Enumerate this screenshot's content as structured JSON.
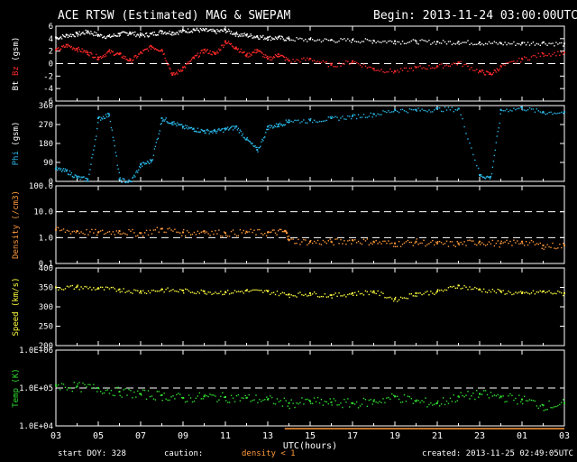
{
  "header": {
    "title": "ACE RTSW (Estimated) MAG & SWEPAM",
    "begin": "Begin: 2013-11-24 03:00:00UTC"
  },
  "footer": {
    "start_doy": "start DOY: 328",
    "caution": "caution:",
    "density_note": "density < 1",
    "created": "created: 2013-11-25 02:49:05UTC"
  },
  "colors": {
    "bt": "#ffffff",
    "bz": "#ff2a2a",
    "phi": "#2ab8e8",
    "density": "#ff9a3c",
    "speed": "#ffff40",
    "temp": "#30e030",
    "axis": "#ffffff",
    "background": "#000000"
  },
  "chart_data": [
    {
      "type": "scatter",
      "ylabel_parts": [
        "Bt",
        "Bz",
        "(gsm)"
      ],
      "yticks": [
        "6",
        "4",
        "2",
        "0",
        "-2",
        "-4",
        "-6"
      ],
      "ylim": [
        -6,
        6
      ],
      "x": {
        "label": "UTC(hours)",
        "ticks": [
          "03",
          "05",
          "07",
          "09",
          "11",
          "13",
          "15",
          "17",
          "19",
          "21",
          "23",
          "01",
          "03"
        ],
        "range_hours": [
          3,
          27
        ]
      },
      "reference_lines": [
        0
      ],
      "series": [
        {
          "name": "Bt",
          "color_key": "bt",
          "points": [
            [
              3,
              4.2
            ],
            [
              3.5,
              4.6
            ],
            [
              4,
              4.8
            ],
            [
              4.5,
              5.2
            ],
            [
              5,
              4.6
            ],
            [
              5.5,
              4.4
            ],
            [
              6,
              4.8
            ],
            [
              6.5,
              5.0
            ],
            [
              7,
              4.6
            ],
            [
              7.5,
              4.8
            ],
            [
              8,
              5.2
            ],
            [
              8.5,
              5.0
            ],
            [
              9,
              5.3
            ],
            [
              9.5,
              5.5
            ],
            [
              10,
              5.4
            ],
            [
              10.5,
              5.2
            ],
            [
              11,
              5.4
            ],
            [
              11.5,
              4.8
            ],
            [
              12,
              4.6
            ],
            [
              12.5,
              4.4
            ],
            [
              13,
              4.2
            ],
            [
              13.5,
              4.2
            ],
            [
              14,
              4.0
            ],
            [
              15,
              3.9
            ],
            [
              16,
              3.8
            ],
            [
              17,
              3.8
            ],
            [
              18,
              3.7
            ],
            [
              19,
              3.6
            ],
            [
              20,
              3.6
            ],
            [
              21,
              3.5
            ],
            [
              22,
              3.5
            ],
            [
              23,
              3.4
            ],
            [
              24,
              3.3
            ],
            [
              25,
              3.3
            ],
            [
              26,
              3.4
            ],
            [
              27,
              3.2
            ]
          ]
        },
        {
          "name": "Bz",
          "color_key": "bz",
          "points": [
            [
              3,
              2.2
            ],
            [
              3.5,
              3.0
            ],
            [
              4,
              2.4
            ],
            [
              4.5,
              1.8
            ],
            [
              5,
              1.0
            ],
            [
              5.5,
              2.0
            ],
            [
              6,
              1.5
            ],
            [
              6.5,
              0.5
            ],
            [
              7,
              1.8
            ],
            [
              7.5,
              2.8
            ],
            [
              8,
              2.2
            ],
            [
              8.5,
              -1.8
            ],
            [
              9,
              -0.6
            ],
            [
              9.5,
              1.0
            ],
            [
              10,
              2.2
            ],
            [
              10.5,
              1.6
            ],
            [
              11,
              3.6
            ],
            [
              11.5,
              2.6
            ],
            [
              12,
              1.4
            ],
            [
              12.5,
              2.2
            ],
            [
              13,
              0.8
            ],
            [
              13.5,
              1.5
            ],
            [
              14,
              0.5
            ],
            [
              15,
              0.8
            ],
            [
              16,
              -0.2
            ],
            [
              17,
              0.4
            ],
            [
              18,
              -0.8
            ],
            [
              19,
              -1.2
            ],
            [
              20,
              -0.6
            ],
            [
              21,
              -0.4
            ],
            [
              22,
              0.2
            ],
            [
              23,
              -1.2
            ],
            [
              23.5,
              -1.6
            ],
            [
              24,
              -0.4
            ],
            [
              25,
              0.8
            ],
            [
              26,
              1.6
            ],
            [
              27,
              1.8
            ]
          ]
        }
      ]
    },
    {
      "type": "scatter",
      "ylabel_parts": [
        "Phi",
        "(gsm)"
      ],
      "yticks": [
        "360",
        "270",
        "180",
        "90",
        "0"
      ],
      "ylim": [
        0,
        360
      ],
      "reference_lines": [],
      "series": [
        {
          "name": "Phi",
          "color_key": "phi",
          "points": [
            [
              3,
              60
            ],
            [
              3.5,
              50
            ],
            [
              4,
              20
            ],
            [
              4.5,
              10
            ],
            [
              5,
              300
            ],
            [
              5.5,
              320
            ],
            [
              6,
              10
            ],
            [
              6.5,
              0
            ],
            [
              7,
              80
            ],
            [
              7.5,
              100
            ],
            [
              8,
              300
            ],
            [
              8.5,
              280
            ],
            [
              9,
              260
            ],
            [
              9.5,
              250
            ],
            [
              10,
              240
            ],
            [
              10.5,
              240
            ],
            [
              11,
              250
            ],
            [
              11.5,
              260
            ],
            [
              12,
              200
            ],
            [
              12.5,
              150
            ],
            [
              13,
              260
            ],
            [
              13.5,
              270
            ],
            [
              14,
              290
            ],
            [
              15,
              290
            ],
            [
              16,
              300
            ],
            [
              17,
              310
            ],
            [
              18,
              320
            ],
            [
              19,
              340
            ],
            [
              20,
              340
            ],
            [
              21,
              345
            ],
            [
              22,
              345
            ],
            [
              23,
              30
            ],
            [
              23.5,
              20
            ],
            [
              24,
              340
            ],
            [
              25,
              350
            ],
            [
              26,
              330
            ],
            [
              27,
              330
            ]
          ]
        }
      ]
    },
    {
      "type": "scatter",
      "ylabel_parts": [
        "Density",
        "(/cm3)"
      ],
      "yticks": [
        "100.0",
        "10.0",
        "1.0",
        "0.1"
      ],
      "ylim": [
        0.1,
        100
      ],
      "log": true,
      "reference_lines": [
        10,
        1
      ],
      "series": [
        {
          "name": "Density",
          "color_key": "density",
          "points": [
            [
              3,
              2.0
            ],
            [
              4,
              1.8
            ],
            [
              5,
              1.6
            ],
            [
              6,
              1.8
            ],
            [
              7,
              1.5
            ],
            [
              8,
              2.2
            ],
            [
              9,
              1.6
            ],
            [
              10,
              1.8
            ],
            [
              11,
              1.5
            ],
            [
              12,
              1.7
            ],
            [
              13,
              1.6
            ],
            [
              13.8,
              1.8
            ],
            [
              14,
              0.8
            ],
            [
              15,
              0.7
            ],
            [
              16,
              0.7
            ],
            [
              17,
              0.8
            ],
            [
              18,
              0.7
            ],
            [
              19,
              0.6
            ],
            [
              20,
              0.7
            ],
            [
              21,
              0.6
            ],
            [
              22,
              0.6
            ],
            [
              23,
              0.7
            ],
            [
              24,
              0.6
            ],
            [
              25,
              0.7
            ],
            [
              26,
              0.5
            ],
            [
              27,
              0.5
            ]
          ]
        }
      ]
    },
    {
      "type": "scatter",
      "ylabel_parts": [
        "Speed",
        "(km/s)"
      ],
      "yticks": [
        "400",
        "350",
        "300",
        "250",
        "200"
      ],
      "ylim": [
        200,
        400
      ],
      "reference_lines": [],
      "series": [
        {
          "name": "Speed",
          "color_key": "speed",
          "points": [
            [
              3,
              350
            ],
            [
              4,
              352
            ],
            [
              5,
              348
            ],
            [
              6,
              345
            ],
            [
              7,
              340
            ],
            [
              8,
              345
            ],
            [
              9,
              342
            ],
            [
              10,
              340
            ],
            [
              11,
              338
            ],
            [
              12,
              342
            ],
            [
              13,
              340
            ],
            [
              14,
              332
            ],
            [
              15,
              335
            ],
            [
              16,
              330
            ],
            [
              17,
              335
            ],
            [
              18,
              340
            ],
            [
              19,
              320
            ],
            [
              20,
              335
            ],
            [
              21,
              340
            ],
            [
              22,
              355
            ],
            [
              23,
              345
            ],
            [
              24,
              340
            ],
            [
              25,
              335
            ],
            [
              26,
              340
            ],
            [
              27,
              335
            ]
          ]
        }
      ]
    },
    {
      "type": "scatter",
      "ylabel_parts": [
        "Temp",
        "(K)"
      ],
      "yticks": [
        "1.0E+06",
        "1.0E+05",
        "1.0E+04"
      ],
      "ylim": [
        10000,
        1000000
      ],
      "log": true,
      "reference_lines": [
        100000
      ],
      "series": [
        {
          "name": "Temp",
          "color_key": "temp",
          "points": [
            [
              3,
              120000
            ],
            [
              4,
              110000
            ],
            [
              5,
              100000
            ],
            [
              6,
              80000
            ],
            [
              7,
              70000
            ],
            [
              8,
              65000
            ],
            [
              9,
              55000
            ],
            [
              10,
              60000
            ],
            [
              11,
              58000
            ],
            [
              12,
              55000
            ],
            [
              13,
              50000
            ],
            [
              14,
              40000
            ],
            [
              15,
              45000
            ],
            [
              16,
              42000
            ],
            [
              17,
              40000
            ],
            [
              18,
              45000
            ],
            [
              19,
              60000
            ],
            [
              20,
              45000
            ],
            [
              21,
              40000
            ],
            [
              22,
              60000
            ],
            [
              23,
              70000
            ],
            [
              24,
              60000
            ],
            [
              25,
              50000
            ],
            [
              26,
              35000
            ],
            [
              27,
              40000
            ]
          ]
        }
      ]
    }
  ]
}
